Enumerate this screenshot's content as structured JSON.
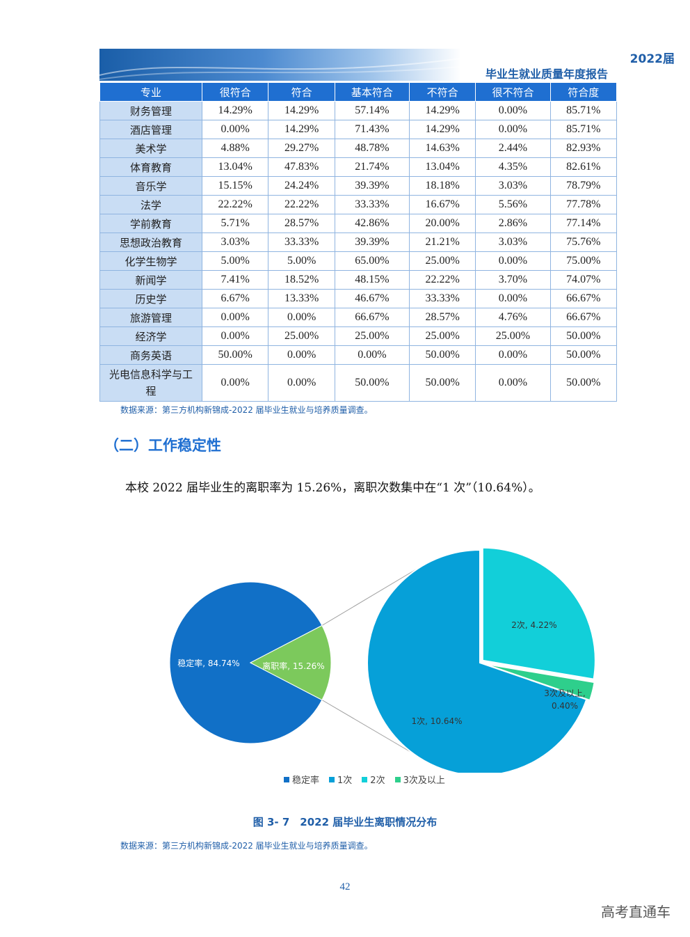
{
  "header": {
    "year": "2022届",
    "title": "毕业生就业质量年度报告"
  },
  "table": {
    "columns": [
      "专业",
      "很符合",
      "符合",
      "基本符合",
      "不符合",
      "很不符合",
      "符合度"
    ],
    "rows": [
      [
        "财务管理",
        "14.29%",
        "14.29%",
        "57.14%",
        "14.29%",
        "0.00%",
        "85.71%"
      ],
      [
        "酒店管理",
        "0.00%",
        "14.29%",
        "71.43%",
        "14.29%",
        "0.00%",
        "85.71%"
      ],
      [
        "美术学",
        "4.88%",
        "29.27%",
        "48.78%",
        "14.63%",
        "2.44%",
        "82.93%"
      ],
      [
        "体育教育",
        "13.04%",
        "47.83%",
        "21.74%",
        "13.04%",
        "4.35%",
        "82.61%"
      ],
      [
        "音乐学",
        "15.15%",
        "24.24%",
        "39.39%",
        "18.18%",
        "3.03%",
        "78.79%"
      ],
      [
        "法学",
        "22.22%",
        "22.22%",
        "33.33%",
        "16.67%",
        "5.56%",
        "77.78%"
      ],
      [
        "学前教育",
        "5.71%",
        "28.57%",
        "42.86%",
        "20.00%",
        "2.86%",
        "77.14%"
      ],
      [
        "思想政治教育",
        "3.03%",
        "33.33%",
        "39.39%",
        "21.21%",
        "3.03%",
        "75.76%"
      ],
      [
        "化学生物学",
        "5.00%",
        "5.00%",
        "65.00%",
        "25.00%",
        "0.00%",
        "75.00%"
      ],
      [
        "新闻学",
        "7.41%",
        "18.52%",
        "48.15%",
        "22.22%",
        "3.70%",
        "74.07%"
      ],
      [
        "历史学",
        "6.67%",
        "13.33%",
        "46.67%",
        "33.33%",
        "0.00%",
        "66.67%"
      ],
      [
        "旅游管理",
        "0.00%",
        "0.00%",
        "66.67%",
        "28.57%",
        "4.76%",
        "66.67%"
      ],
      [
        "经济学",
        "0.00%",
        "25.00%",
        "25.00%",
        "25.00%",
        "25.00%",
        "50.00%"
      ],
      [
        "商务英语",
        "50.00%",
        "0.00%",
        "0.00%",
        "50.00%",
        "0.00%",
        "50.00%"
      ],
      [
        "光电信息科学与工程",
        "0.00%",
        "0.00%",
        "50.00%",
        "50.00%",
        "0.00%",
        "50.00%"
      ]
    ]
  },
  "source_note_1": "数据来源：第三方机构新锦成-2022 届毕业生就业与培养质量调查。",
  "section_title": "（二）工作稳定性",
  "body_text": "本校 2022 届毕业生的离职率为 15.26%，离职次数集中在“1 次”（10.64%）。",
  "chart_data": {
    "type": "pie",
    "title": "",
    "main_pie": [
      {
        "name": "稳定率",
        "value": 84.74,
        "label": "稳定率, 84.74%",
        "color": "#1170c7"
      },
      {
        "name": "离职率",
        "value": 15.26,
        "label": "离职率, 15.26%",
        "color": "#7cc95c"
      }
    ],
    "breakdown_pie": [
      {
        "name": "1次",
        "value": 10.64,
        "label": "1次, 10.64%",
        "color": "#06a0d8"
      },
      {
        "name": "2次",
        "value": 4.22,
        "label": "2次, 4.22%",
        "color": "#12cfd9"
      },
      {
        "name": "3次及以上",
        "value": 0.4,
        "label": "3次及以上, 0.40%",
        "label_line1": "3次及以上,",
        "label_line2": "0.40%",
        "color": "#2ecf8c"
      }
    ],
    "legend": [
      "稳定率",
      "1次",
      "2次",
      "3次及以上"
    ],
    "legend_colors": [
      "#1170c7",
      "#06a0d8",
      "#12cfd9",
      "#2ecf8c"
    ],
    "legend_position": "bottom"
  },
  "figure_caption": "图 3- 7　2022 届毕业生离职情况分布",
  "source_note_2": "数据来源：第三方机构新锦成-2022 届毕业生就业与培养质量调查。",
  "page_number": "42",
  "watermark": "高考直通车"
}
